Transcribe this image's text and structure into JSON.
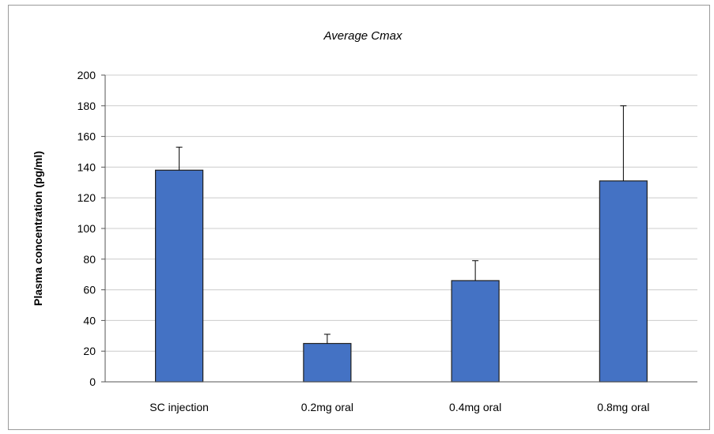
{
  "chart_data": {
    "type": "bar",
    "title": "Average Cmax",
    "xlabel": "",
    "ylabel": "Plasma concentration (pg/ml)",
    "ylim": [
      0,
      200
    ],
    "yticks": [
      0,
      20,
      40,
      60,
      80,
      100,
      120,
      140,
      160,
      180,
      200
    ],
    "categories": [
      "SC injection",
      "0.2mg oral",
      "0.4mg oral",
      "0.8mg oral"
    ],
    "values": [
      138,
      25,
      66,
      131
    ],
    "error_upper": [
      15,
      6,
      13,
      49
    ],
    "grid": true,
    "legend": "none",
    "bar_color": "#4472C4",
    "bar_edge_color": "#1f1f1f",
    "grid_color": "#cccccc"
  }
}
